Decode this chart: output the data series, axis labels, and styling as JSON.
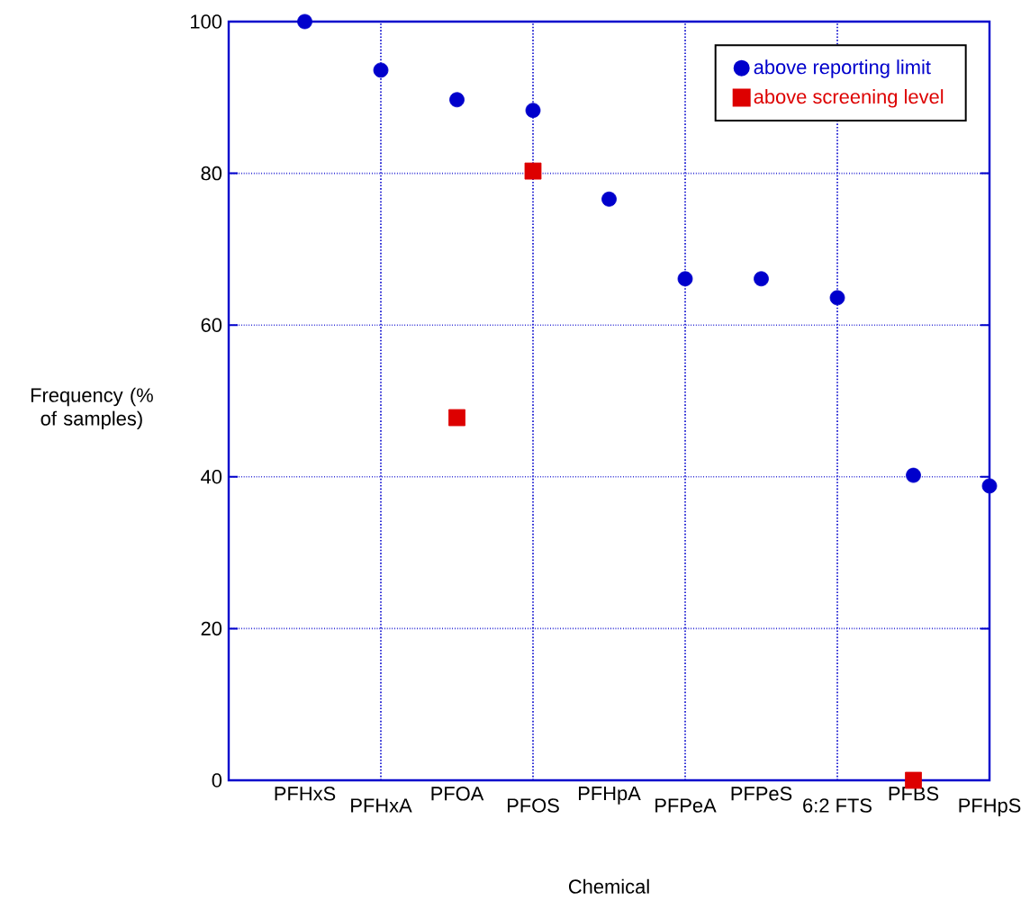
{
  "chart_data": {
    "type": "scatter",
    "xlabel": "Chemical",
    "ylabel": "Frequency (% of samples)",
    "categories": [
      "PFHxS",
      "PFHxA",
      "PFOA",
      "PFOS",
      "PFHpA",
      "PFPeA",
      "PFPeS",
      "6:2 FTS",
      "PFBS",
      "PFHpS"
    ],
    "series": [
      {
        "name": "above reporting limit",
        "color": "#0000cc",
        "marker": "circle",
        "values": [
          100,
          93.6,
          89.7,
          88.3,
          76.6,
          66.1,
          66.1,
          63.6,
          40.2,
          38.8
        ]
      },
      {
        "name": "above screening level",
        "color": "#dd0000",
        "marker": "square",
        "values": [
          null,
          null,
          47.8,
          80.3,
          null,
          null,
          null,
          null,
          0,
          null
        ]
      }
    ],
    "ylim": [
      0,
      100
    ],
    "yticks": [
      0,
      20,
      40,
      60,
      80,
      100
    ],
    "grid": true,
    "legend": "top right"
  }
}
